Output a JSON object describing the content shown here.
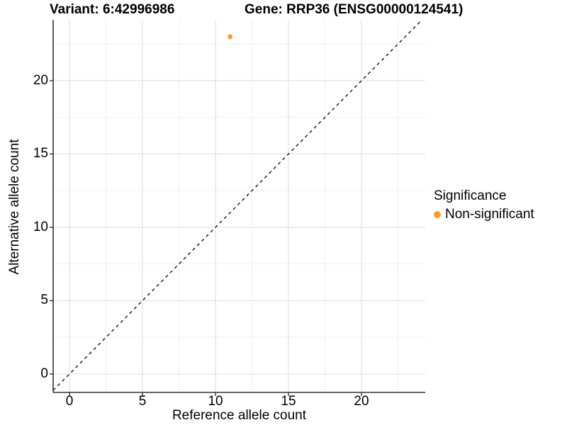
{
  "titles": {
    "variant": "Variant: 6:42996986",
    "gene": "Gene: RRP36 (ENSG00000124541)"
  },
  "chart_data": {
    "type": "scatter",
    "title": "Variant: 6:42996986   Gene: RRP36 (ENSG00000124541)",
    "xlabel": "Reference allele count",
    "ylabel": "Alternative allele count",
    "xlim": [
      -1.12,
      24.37
    ],
    "ylim": [
      -1.26,
      24.15
    ],
    "xticks": [
      0,
      5,
      10,
      15,
      20
    ],
    "yticks": [
      0,
      5,
      10,
      15,
      20
    ],
    "xminor": [
      2.5,
      7.5,
      12.5,
      17.5,
      22.5
    ],
    "yminor": [
      2.5,
      7.5,
      12.5,
      17.5,
      22.5
    ],
    "grid": "major+minor",
    "series": [
      {
        "name": "Non-significant",
        "color": "#FAA01E",
        "points": [
          {
            "x": 11,
            "y": 23
          }
        ]
      }
    ],
    "reference_line": {
      "type": "identity",
      "equation": "y = x",
      "style": "dashed",
      "color": "#000000"
    },
    "legend": {
      "title": "Significance",
      "position": "right",
      "items": [
        {
          "label": "Non-significant",
          "color": "#FAA01E"
        }
      ]
    }
  },
  "colors": {
    "background": "#FFFFFF",
    "text": "#000000",
    "axis_line": "#333333",
    "major_grid": "#E2E2E2",
    "minor_grid": "#F0F0F0",
    "point": "#FAA01E"
  }
}
